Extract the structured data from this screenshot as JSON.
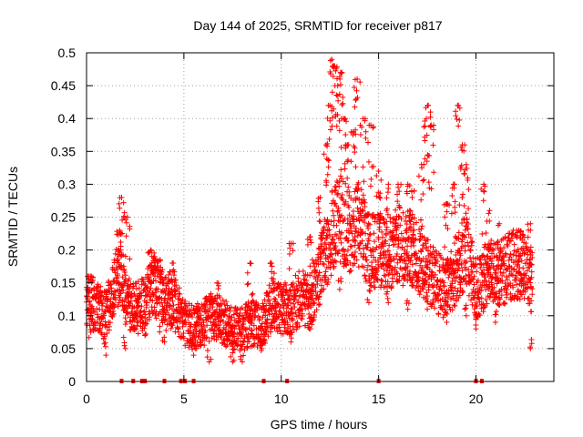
{
  "chart_data": {
    "type": "scatter",
    "title": "Day 144 of 2025, SRMTID for receiver p817",
    "xlabel": "GPS time / hours",
    "ylabel": "SRMTID / TECUs",
    "xlim": [
      0,
      24
    ],
    "ylim": [
      0,
      0.5
    ],
    "x_ticks": [
      0,
      5,
      10,
      15,
      20
    ],
    "x_tick_labels": [
      "0",
      "5",
      "10",
      "15",
      "20"
    ],
    "y_ticks": [
      0,
      0.05,
      0.1,
      0.15,
      0.2,
      0.25,
      0.3,
      0.35,
      0.4,
      0.45,
      0.5
    ],
    "y_tick_labels": [
      "0",
      "0.05",
      "0.1",
      "0.15",
      "0.2",
      "0.25",
      "0.3",
      "0.35",
      "0.4",
      "0.45",
      "0.5"
    ],
    "grid": true,
    "marker": "plus",
    "color": "#ff0000",
    "series": [
      {
        "name": "SRMTID",
        "trend": [
          [
            0.0,
            0.12
          ],
          [
            0.5,
            0.11
          ],
          [
            1.0,
            0.1
          ],
          [
            1.5,
            0.15
          ],
          [
            1.8,
            0.18
          ],
          [
            2.0,
            0.12
          ],
          [
            2.5,
            0.11
          ],
          [
            3.0,
            0.12
          ],
          [
            3.5,
            0.15
          ],
          [
            4.0,
            0.13
          ],
          [
            4.5,
            0.12
          ],
          [
            5.0,
            0.09
          ],
          [
            5.5,
            0.08
          ],
          [
            6.0,
            0.09
          ],
          [
            6.5,
            0.1
          ],
          [
            7.0,
            0.09
          ],
          [
            7.5,
            0.08
          ],
          [
            8.0,
            0.08
          ],
          [
            8.5,
            0.09
          ],
          [
            9.0,
            0.08
          ],
          [
            9.5,
            0.12
          ],
          [
            10.0,
            0.11
          ],
          [
            10.5,
            0.11
          ],
          [
            11.0,
            0.13
          ],
          [
            11.5,
            0.12
          ],
          [
            12.0,
            0.17
          ],
          [
            12.5,
            0.22
          ],
          [
            13.0,
            0.25
          ],
          [
            13.5,
            0.23
          ],
          [
            14.0,
            0.24
          ],
          [
            14.5,
            0.2
          ],
          [
            15.0,
            0.2
          ],
          [
            15.5,
            0.19
          ],
          [
            16.0,
            0.21
          ],
          [
            16.5,
            0.2
          ],
          [
            17.0,
            0.19
          ],
          [
            17.5,
            0.17
          ],
          [
            18.0,
            0.15
          ],
          [
            18.5,
            0.14
          ],
          [
            19.0,
            0.17
          ],
          [
            19.5,
            0.2
          ],
          [
            20.0,
            0.14
          ],
          [
            20.5,
            0.16
          ],
          [
            21.0,
            0.16
          ],
          [
            21.5,
            0.17
          ],
          [
            22.0,
            0.18
          ],
          [
            22.5,
            0.17
          ],
          [
            22.9,
            0.15
          ]
        ],
        "peaks": [
          [
            0.2,
            0.16
          ],
          [
            1.6,
            0.2
          ],
          [
            1.7,
            0.23
          ],
          [
            1.8,
            0.28
          ],
          [
            2.1,
            0.25
          ],
          [
            3.3,
            0.2
          ],
          [
            3.5,
            0.19
          ],
          [
            3.9,
            0.17
          ],
          [
            4.4,
            0.18
          ],
          [
            6.7,
            0.15
          ],
          [
            8.4,
            0.18
          ],
          [
            9.5,
            0.18
          ],
          [
            10.5,
            0.21
          ],
          [
            11.5,
            0.22
          ],
          [
            12.0,
            0.28
          ],
          [
            12.3,
            0.36
          ],
          [
            12.5,
            0.42
          ],
          [
            12.6,
            0.49
          ],
          [
            12.75,
            0.48
          ],
          [
            12.9,
            0.45
          ],
          [
            13.05,
            0.47
          ],
          [
            13.2,
            0.4
          ],
          [
            13.4,
            0.36
          ],
          [
            13.7,
            0.38
          ],
          [
            13.9,
            0.46
          ],
          [
            14.2,
            0.4
          ],
          [
            14.6,
            0.39
          ],
          [
            15.0,
            0.32
          ],
          [
            15.5,
            0.3
          ],
          [
            16.0,
            0.3
          ],
          [
            16.5,
            0.3
          ],
          [
            16.7,
            0.29
          ],
          [
            17.2,
            0.33
          ],
          [
            17.45,
            0.4
          ],
          [
            17.55,
            0.42
          ],
          [
            17.7,
            0.39
          ],
          [
            18.5,
            0.27
          ],
          [
            18.9,
            0.3
          ],
          [
            19.1,
            0.42
          ],
          [
            19.3,
            0.36
          ],
          [
            19.5,
            0.33
          ],
          [
            20.4,
            0.3
          ],
          [
            20.7,
            0.26
          ],
          [
            21.2,
            0.24
          ],
          [
            22.2,
            0.23
          ],
          [
            22.8,
            0.24
          ]
        ],
        "troughs": [
          [
            1.0,
            0.04
          ],
          [
            2.0,
            0.05
          ],
          [
            3.0,
            0.07
          ],
          [
            4.0,
            0.06
          ],
          [
            5.5,
            0.04
          ],
          [
            6.3,
            0.03
          ],
          [
            7.5,
            0.03
          ],
          [
            8.0,
            0.03
          ],
          [
            9.0,
            0.05
          ],
          [
            10.5,
            0.06
          ],
          [
            11.5,
            0.08
          ],
          [
            13.0,
            0.14
          ],
          [
            14.5,
            0.12
          ],
          [
            15.5,
            0.12
          ],
          [
            16.5,
            0.11
          ],
          [
            17.5,
            0.11
          ],
          [
            18.5,
            0.09
          ],
          [
            19.5,
            0.1
          ],
          [
            20.0,
            0.08
          ],
          [
            21.0,
            0.09
          ],
          [
            22.8,
            0.05
          ]
        ],
        "zero_values_at_hours": [
          1.8,
          2.4,
          2.85,
          3.0,
          4.0,
          4.85,
          5.05,
          5.5,
          9.1,
          10.3,
          15.0,
          20.0,
          20.3
        ]
      }
    ]
  }
}
